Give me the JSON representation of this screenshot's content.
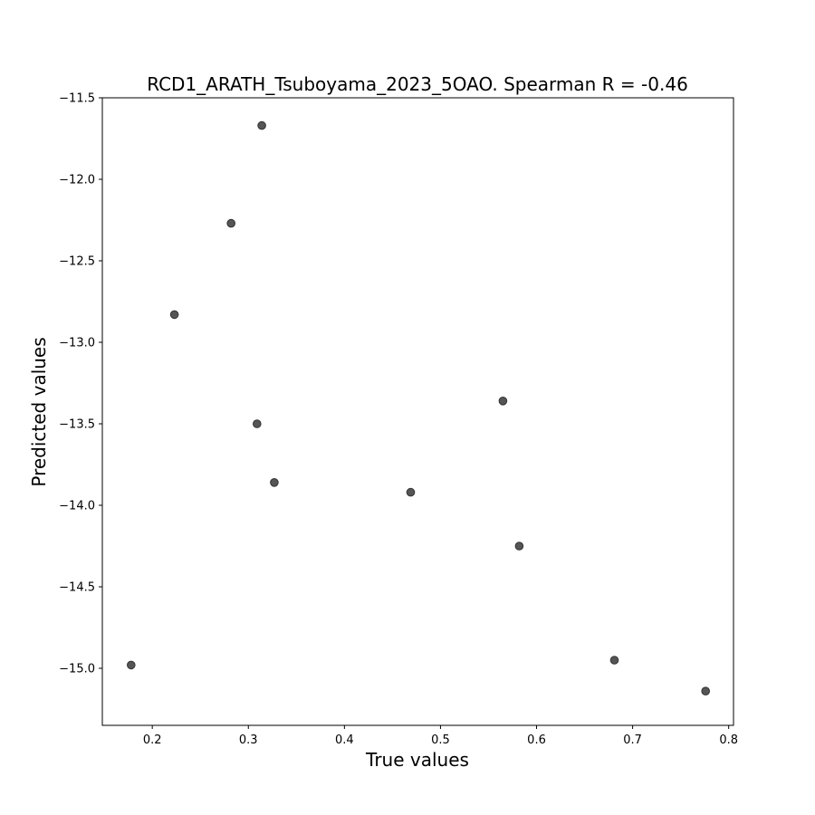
{
  "chart_data": {
    "type": "scatter",
    "title": "RCD1_ARATH_Tsuboyama_2023_5OAO. Spearman R = -0.46",
    "xlabel": "True values",
    "ylabel": "Predicted values",
    "xlim": [
      0.148,
      0.805
    ],
    "ylim": [
      -15.35,
      -11.5
    ],
    "xticks": [
      0.2,
      0.3,
      0.4,
      0.5,
      0.6,
      0.7,
      0.8
    ],
    "yticks": [
      -11.5,
      -12.0,
      -12.5,
      -13.0,
      -13.5,
      -14.0,
      -14.5,
      -15.0
    ],
    "xtick_labels": [
      "0.2",
      "0.3",
      "0.4",
      "0.5",
      "0.6",
      "0.7",
      "0.8"
    ],
    "ytick_labels": [
      "−11.5",
      "−12.0",
      "−12.5",
      "−13.0",
      "−13.5",
      "−14.0",
      "−14.5",
      "−15.0"
    ],
    "grid": false,
    "marker_color": "#555555",
    "points": [
      {
        "x": 0.314,
        "y": -11.67
      },
      {
        "x": 0.282,
        "y": -12.27
      },
      {
        "x": 0.223,
        "y": -12.83
      },
      {
        "x": 0.565,
        "y": -13.36
      },
      {
        "x": 0.309,
        "y": -13.5
      },
      {
        "x": 0.327,
        "y": -13.86
      },
      {
        "x": 0.469,
        "y": -13.92
      },
      {
        "x": 0.582,
        "y": -14.25
      },
      {
        "x": 0.178,
        "y": -14.98
      },
      {
        "x": 0.681,
        "y": -14.95
      },
      {
        "x": 0.776,
        "y": -15.14
      }
    ]
  }
}
